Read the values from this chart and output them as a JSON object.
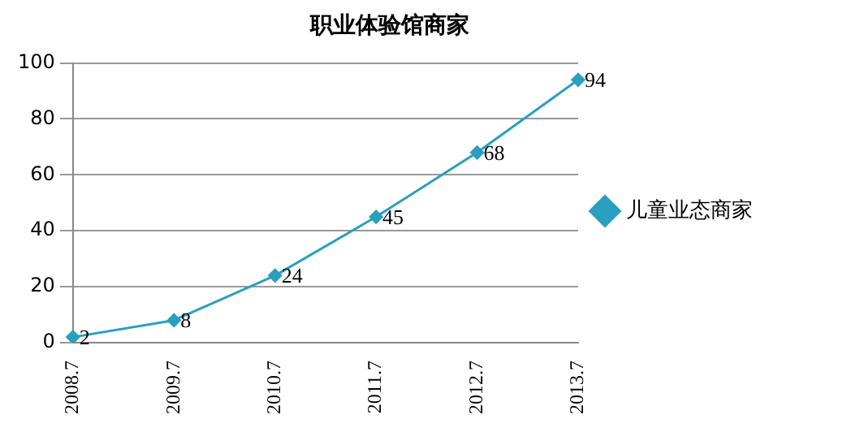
{
  "chart_data": {
    "type": "line",
    "title": "职业体验馆商家",
    "categories": [
      "2008.7",
      "2009.7",
      "2010.7",
      "2011.7",
      "2012.7",
      "2013.7"
    ],
    "series": [
      {
        "name": "儿童业态商家",
        "color": "#2a9fbf",
        "values": [
          2,
          8,
          24,
          45,
          68,
          94
        ]
      }
    ],
    "ylim": [
      0,
      100
    ],
    "yticks": [
      0,
      20,
      40,
      60,
      80,
      100
    ],
    "grid": "y",
    "legend": "right",
    "marker": "diamond",
    "data_labels": true
  }
}
